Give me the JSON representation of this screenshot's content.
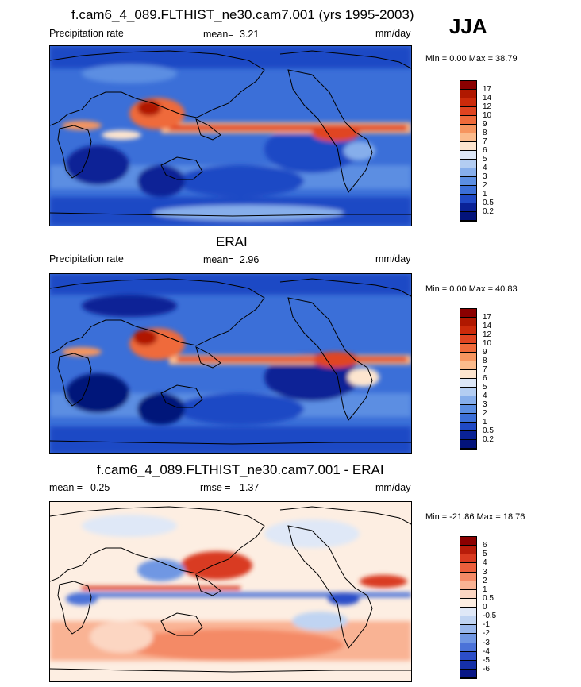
{
  "season": "JJA",
  "panels": [
    {
      "title": "f.cam6_4_089.FLTHIST_ne30.cam7.001 (yrs 1995-2003)",
      "left_label": "Precipitation rate",
      "center_label": "mean=",
      "center_value": "3.21",
      "units": "mm/day",
      "minmax": "Min =   0.00 Max =  38.79",
      "colorbar": {
        "levels": [
          "17",
          "14",
          "12",
          "10",
          "9",
          "8",
          "7",
          "6",
          "5",
          "4",
          "3",
          "2",
          "1",
          "0.5",
          "0.2"
        ],
        "colors": [
          "#8b0000",
          "#b01800",
          "#cc2a0a",
          "#e04420",
          "#ef6a3a",
          "#f6955f",
          "#fbbb8c",
          "#fde5cf",
          "#dbe6f7",
          "#b3cdf2",
          "#86aeeb",
          "#5b8ee2",
          "#3b6fd8",
          "#1f49c5",
          "#0a2296",
          "#03137a"
        ]
      }
    },
    {
      "title": "ERAI",
      "left_label": "Precipitation rate",
      "center_label": "mean=",
      "center_value": "2.96",
      "units": "mm/day",
      "minmax": "Min =   0.00 Max =  40.83",
      "colorbar": {
        "levels": [
          "17",
          "14",
          "12",
          "10",
          "9",
          "8",
          "7",
          "6",
          "5",
          "4",
          "3",
          "2",
          "1",
          "0.5",
          "0.2"
        ],
        "colors": [
          "#8b0000",
          "#b01800",
          "#cc2a0a",
          "#e04420",
          "#ef6a3a",
          "#f6955f",
          "#fbbb8c",
          "#fde5cf",
          "#dbe6f7",
          "#b3cdf2",
          "#86aeeb",
          "#5b8ee2",
          "#3b6fd8",
          "#1f49c5",
          "#0a2296",
          "#03137a"
        ]
      }
    },
    {
      "title": "f.cam6_4_089.FLTHIST_ne30.cam7.001 - ERAI",
      "left_label": "mean =",
      "left_value": "0.25",
      "center_label": "rmse =",
      "center_value": "1.37",
      "units": "mm/day",
      "minmax": "Min = -21.86 Max =  18.76",
      "colorbar": {
        "levels": [
          "6",
          "5",
          "4",
          "3",
          "2",
          "1",
          "0.5",
          "0",
          "-0.5",
          "-1",
          "-2",
          "-3",
          "-4",
          "-5",
          "-6"
        ],
        "colors": [
          "#8b0000",
          "#b81c0a",
          "#d93a20",
          "#ec5f3c",
          "#f48a66",
          "#f9b394",
          "#fcd6c2",
          "#fdeee2",
          "#dfe8f7",
          "#c0d4f2",
          "#9ab8ec",
          "#7097e3",
          "#4b72d8",
          "#2c4ec8",
          "#1530a8",
          "#081686"
        ]
      }
    }
  ]
}
